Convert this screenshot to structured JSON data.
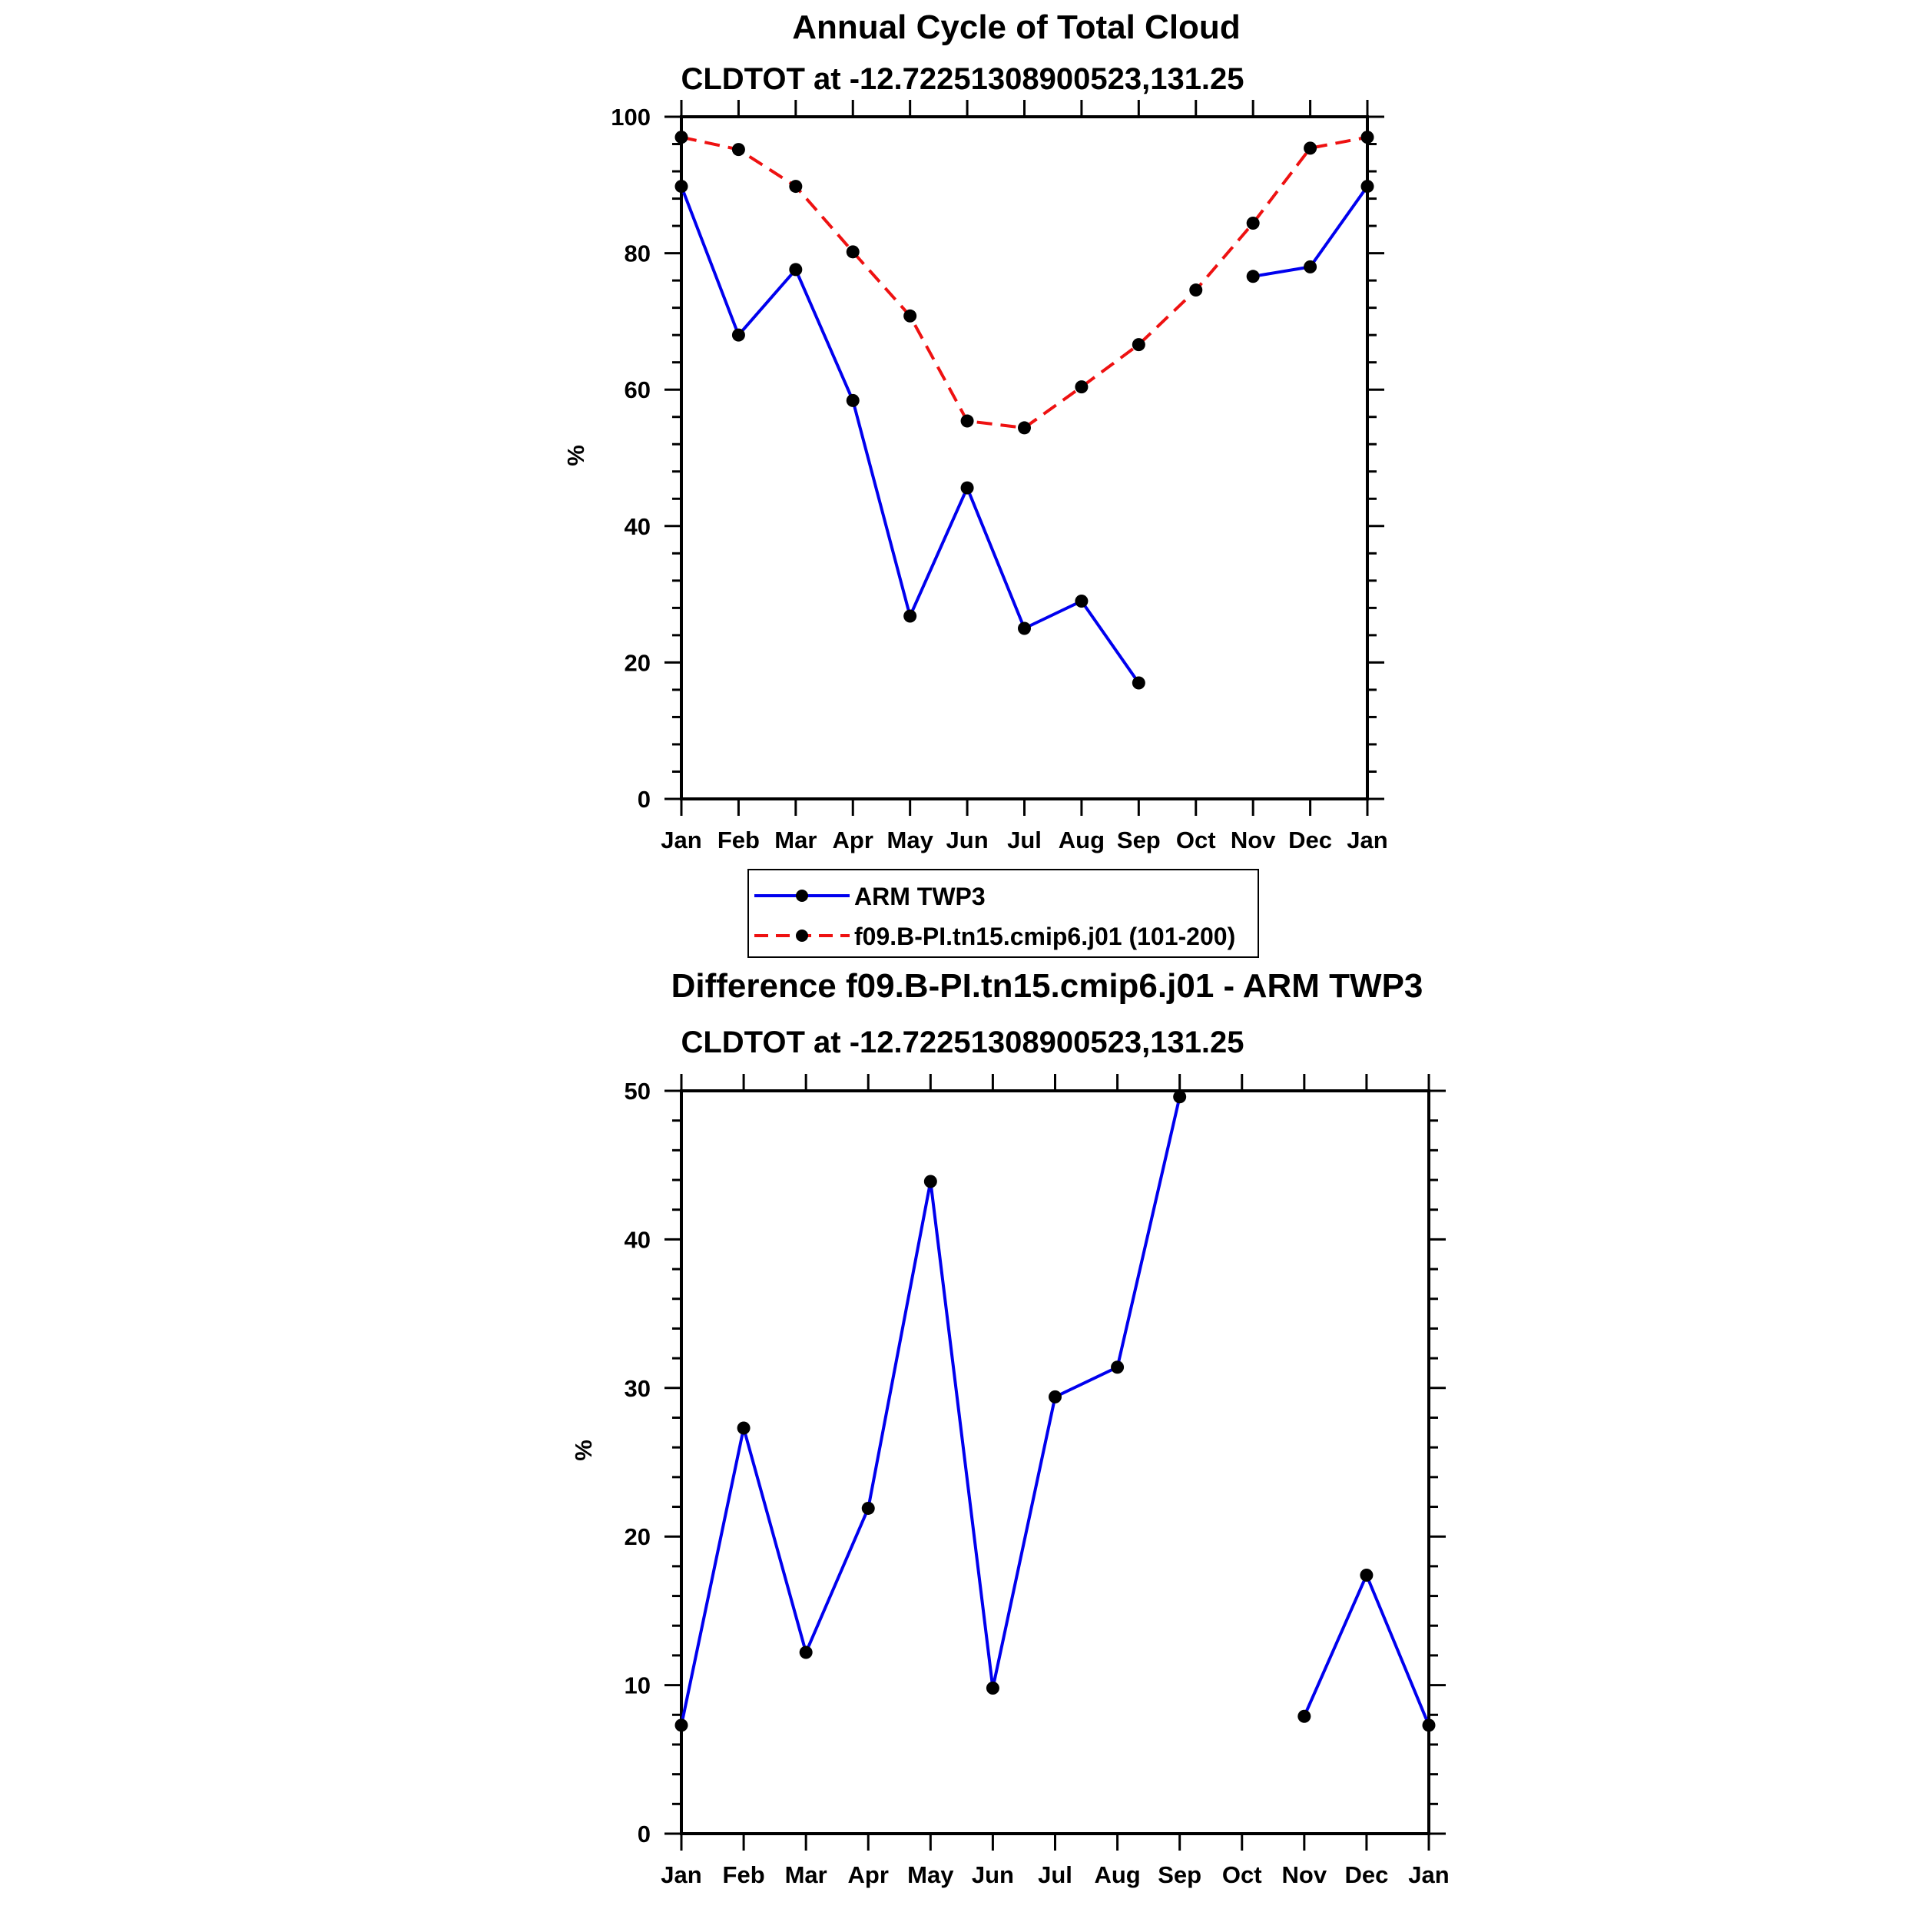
{
  "chart_data": [
    {
      "type": "line",
      "title": "Annual Cycle of Total Cloud",
      "subtitle": "CLDTOT at -12.72251308900523,131.25",
      "ylabel": "%",
      "xlabel": "",
      "categories": [
        "Jan",
        "Feb",
        "Mar",
        "Apr",
        "May",
        "Jun",
        "Jul",
        "Aug",
        "Sep",
        "Oct",
        "Nov",
        "Dec",
        "Jan"
      ],
      "ylim": [
        0,
        100
      ],
      "yticks": [
        0,
        20,
        40,
        60,
        80,
        100
      ],
      "yminor": 5,
      "grid": false,
      "series": [
        {
          "name": "ARM TWP3",
          "color": "#0000ee",
          "dash": false,
          "values": [
            89.8,
            68.0,
            77.6,
            58.4,
            26.8,
            45.6,
            25.0,
            29.0,
            17.0,
            null,
            76.6,
            78.0,
            89.8
          ]
        },
        {
          "name": "f09.B-PI.tn15.cmip6.j01 (101-200)",
          "color": "#ee1111",
          "dash": true,
          "values": [
            97.0,
            95.2,
            89.8,
            80.2,
            70.8,
            55.4,
            54.4,
            60.4,
            66.6,
            74.6,
            84.4,
            95.4,
            97.0
          ]
        }
      ],
      "legend": {
        "position": "bottom-center",
        "entries": [
          "ARM TWP3",
          "f09.B-PI.tn15.cmip6.j01 (101-200)"
        ]
      }
    },
    {
      "type": "line",
      "title": "Difference f09.B-PI.tn15.cmip6.j01 - ARM TWP3",
      "subtitle": "CLDTOT at -12.72251308900523,131.25",
      "ylabel": "%",
      "xlabel": "",
      "categories": [
        "Jan",
        "Feb",
        "Mar",
        "Apr",
        "May",
        "Jun",
        "Jul",
        "Aug",
        "Sep",
        "Oct",
        "Nov",
        "Dec",
        "Jan"
      ],
      "ylim": [
        0,
        50
      ],
      "yticks": [
        0,
        10,
        20,
        30,
        40,
        50
      ],
      "yminor": 5,
      "grid": false,
      "series": [
        {
          "name": "Difference",
          "color": "#0000ee",
          "dash": false,
          "values": [
            7.3,
            27.3,
            12.2,
            21.9,
            43.9,
            9.8,
            29.4,
            31.4,
            49.6,
            null,
            7.9,
            17.4,
            7.3
          ]
        }
      ]
    }
  ]
}
